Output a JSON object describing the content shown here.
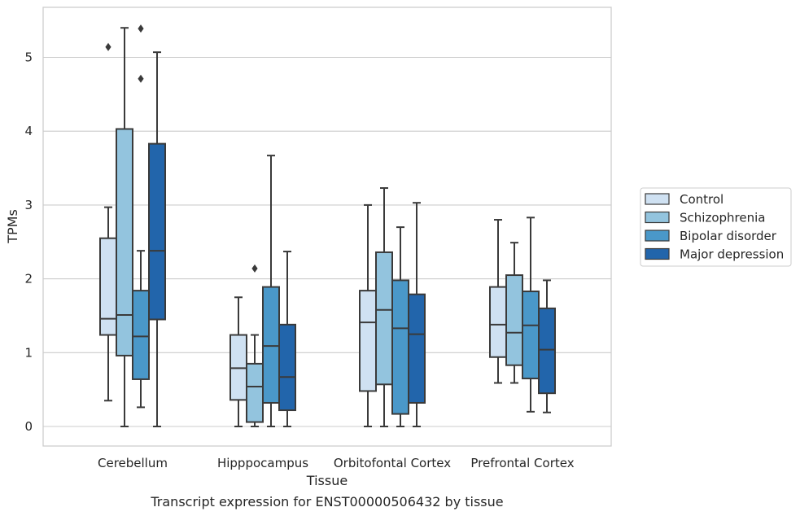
{
  "chart_data": {
    "type": "box",
    "caption": "Transcript expression for ENST00000506432 by tissue",
    "xlabel": "Tissue",
    "ylabel": "TPMs",
    "ylim": [
      -0.25,
      5.65
    ],
    "yticks": [
      0,
      1,
      2,
      3,
      4,
      5
    ],
    "grid": true,
    "legend_placement": "right",
    "categories": [
      "Cerebellum",
      "Hipppocampus",
      "Orbitofontal Cortex",
      "Prefrontal Cortex"
    ],
    "series": [
      {
        "name": "Control",
        "color": "#cfe1f2",
        "boxes": [
          {
            "whislo": 0.35,
            "q1": 1.24,
            "med": 1.46,
            "q3": 2.55,
            "whishi": 2.97,
            "fliers": [
              5.14
            ]
          },
          {
            "whislo": 0.0,
            "q1": 0.36,
            "med": 0.79,
            "q3": 1.24,
            "whishi": 1.75,
            "fliers": []
          },
          {
            "whislo": 0.0,
            "q1": 0.48,
            "med": 1.41,
            "q3": 1.84,
            "whishi": 3.0,
            "fliers": []
          },
          {
            "whislo": 0.59,
            "q1": 0.94,
            "med": 1.38,
            "q3": 1.89,
            "whishi": 2.8,
            "fliers": []
          }
        ]
      },
      {
        "name": "Schizophrenia",
        "color": "#93c4de",
        "boxes": [
          {
            "whislo": 0.0,
            "q1": 0.96,
            "med": 1.51,
            "q3": 4.03,
            "whishi": 5.4,
            "fliers": []
          },
          {
            "whislo": 0.0,
            "q1": 0.06,
            "med": 0.54,
            "q3": 0.85,
            "whishi": 1.24,
            "fliers": [
              2.14
            ]
          },
          {
            "whislo": 0.0,
            "q1": 0.57,
            "med": 1.58,
            "q3": 2.36,
            "whishi": 3.23,
            "fliers": []
          },
          {
            "whislo": 0.59,
            "q1": 0.83,
            "med": 1.27,
            "q3": 2.05,
            "whishi": 2.49,
            "fliers": []
          }
        ]
      },
      {
        "name": "Bipolar disorder",
        "color": "#4a98c9",
        "boxes": [
          {
            "whislo": 0.26,
            "q1": 0.64,
            "med": 1.22,
            "q3": 1.84,
            "whishi": 2.38,
            "fliers": [
              4.71,
              5.39
            ]
          },
          {
            "whislo": 0.0,
            "q1": 0.32,
            "med": 1.09,
            "q3": 1.89,
            "whishi": 3.67,
            "fliers": []
          },
          {
            "whislo": 0.0,
            "q1": 0.17,
            "med": 1.33,
            "q3": 1.98,
            "whishi": 2.7,
            "fliers": []
          },
          {
            "whislo": 0.2,
            "q1": 0.65,
            "med": 1.37,
            "q3": 1.83,
            "whishi": 2.83,
            "fliers": []
          }
        ]
      },
      {
        "name": "Major depression",
        "color": "#2265ab",
        "boxes": [
          {
            "whislo": 0.0,
            "q1": 1.45,
            "med": 2.38,
            "q3": 3.83,
            "whishi": 5.07,
            "fliers": []
          },
          {
            "whislo": 0.0,
            "q1": 0.22,
            "med": 0.67,
            "q3": 1.38,
            "whishi": 2.37,
            "fliers": []
          },
          {
            "whislo": 0.0,
            "q1": 0.32,
            "med": 1.25,
            "q3": 1.79,
            "whishi": 3.03,
            "fliers": []
          },
          {
            "whislo": 0.19,
            "q1": 0.45,
            "med": 1.04,
            "q3": 1.6,
            "whishi": 1.98,
            "fliers": []
          }
        ]
      }
    ]
  },
  "style": {
    "grid_color": "#cccccc",
    "spine_color": "#cccccc",
    "line_color": "#3a3a3a",
    "background": "#ffffff"
  }
}
